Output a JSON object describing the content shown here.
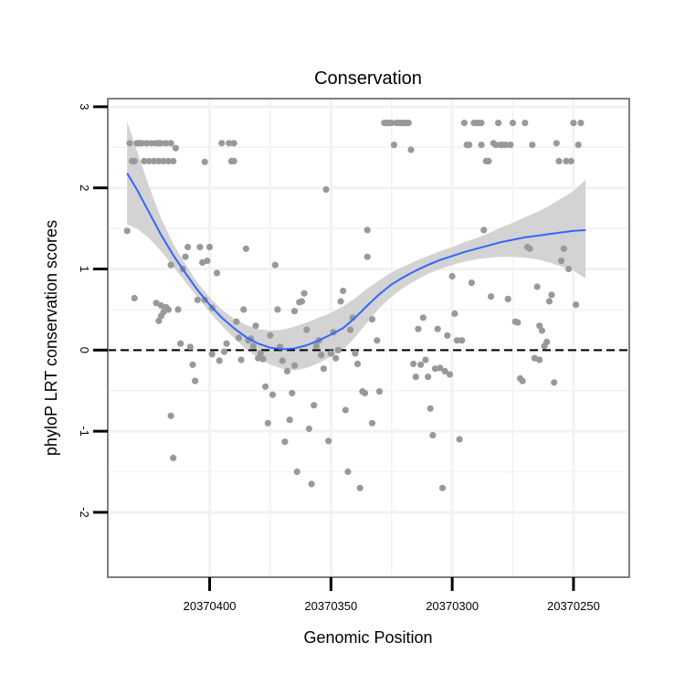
{
  "chart_data": {
    "type": "scatter",
    "title": "Conservation",
    "xlabel": "Genomic Position",
    "ylabel": "phyloP LRT conservation scores",
    "x_reversed": true,
    "xlim": [
      20370442,
      20370227
    ],
    "ylim": [
      -2.8,
      3.1
    ],
    "x_ticks": [
      20370400,
      20370350,
      20370300,
      20370250
    ],
    "x_tick_labels": [
      "20370400",
      "20370350",
      "20370300",
      "20370250"
    ],
    "y_ticks": [
      -2,
      -1,
      0,
      1,
      2,
      3
    ],
    "y_tick_labels": [
      "-2",
      "-1",
      "0",
      "1",
      "2",
      "3"
    ],
    "reference_line": {
      "y": 0,
      "style": "dashed"
    },
    "colors": {
      "points": "#999999",
      "smooth": "#3366ff",
      "band": "#d3d3d3",
      "frame": "#7f7f7f",
      "grid": "#f2f2f2"
    },
    "points": [
      [
        20370434,
        1.47
      ],
      [
        20370433,
        2.55
      ],
      [
        20370432,
        2.33
      ],
      [
        20370431,
        2.33
      ],
      [
        20370430,
        2.55
      ],
      [
        20370429,
        2.55
      ],
      [
        20370428,
        2.55
      ],
      [
        20370427,
        2.33
      ],
      [
        20370426,
        2.55
      ],
      [
        20370425,
        2.33
      ],
      [
        20370424,
        2.55
      ],
      [
        20370423,
        2.33
      ],
      [
        20370422,
        2.55
      ],
      [
        20370421,
        2.33
      ],
      [
        20370420,
        2.55
      ],
      [
        20370419,
        2.33
      ],
      [
        20370418,
        2.55
      ],
      [
        20370417,
        2.33
      ],
      [
        20370416,
        2.55
      ],
      [
        20370415,
        2.33
      ],
      [
        20370431,
        0.64
      ],
      [
        20370422,
        0.58
      ],
      [
        20370420,
        0.42
      ],
      [
        20370419,
        0.47
      ],
      [
        20370418,
        0.53
      ],
      [
        20370417,
        0.5
      ],
      [
        20370421,
        0.36
      ],
      [
        20370416,
        1.05
      ],
      [
        20370414,
        2.49
      ],
      [
        20370416,
        -0.81
      ],
      [
        20370415,
        -1.33
      ],
      [
        20370411,
        1.0
      ],
      [
        20370412,
        0.08
      ],
      [
        20370413,
        0.5
      ],
      [
        20370410,
        1.15
      ],
      [
        20370409,
        1.27
      ],
      [
        20370408,
        0.04
      ],
      [
        20370407,
        -0.18
      ],
      [
        20370406,
        -0.38
      ],
      [
        20370405,
        0.62
      ],
      [
        20370404,
        1.27
      ],
      [
        20370403,
        1.08
      ],
      [
        20370402,
        2.32
      ],
      [
        20370402,
        0.62
      ],
      [
        20370401,
        1.1
      ],
      [
        20370400,
        1.27
      ],
      [
        20370399,
        0.52
      ],
      [
        20370399,
        -0.05
      ],
      [
        20370397,
        0.95
      ],
      [
        20370396,
        -0.13
      ],
      [
        20370395,
        2.55
      ],
      [
        20370394,
        -0.02
      ],
      [
        20370393,
        0.08
      ],
      [
        20370392,
        2.55
      ],
      [
        20370391,
        2.33
      ],
      [
        20370390,
        2.55
      ],
      [
        20370390,
        2.33
      ],
      [
        20370389,
        0.35
      ],
      [
        20370388,
        0.15
      ],
      [
        20370387,
        -0.12
      ],
      [
        20370386,
        0.5
      ],
      [
        20370385,
        1.25
      ],
      [
        20370384,
        0.12
      ],
      [
        20370383,
        0.14
      ],
      [
        20370382,
        0.05
      ],
      [
        20370381,
        0.3
      ],
      [
        20370380,
        -0.1
      ],
      [
        20370379,
        -0.04
      ],
      [
        20370378,
        -0.11
      ],
      [
        20370377,
        -0.45
      ],
      [
        20370376,
        -0.9
      ],
      [
        20370375,
        0.18
      ],
      [
        20370374,
        -0.55
      ],
      [
        20370373,
        1.05
      ],
      [
        20370372,
        0.5
      ],
      [
        20370371,
        0.04
      ],
      [
        20370370,
        -0.13
      ],
      [
        20370369,
        -1.13
      ],
      [
        20370368,
        -0.26
      ],
      [
        20370367,
        -0.86
      ],
      [
        20370366,
        -0.53
      ],
      [
        20370365,
        0.48
      ],
      [
        20370365,
        -0.19
      ],
      [
        20370364,
        -1.5
      ],
      [
        20370363,
        0.59
      ],
      [
        20370362,
        0.6
      ],
      [
        20370361,
        0.7
      ],
      [
        20370360,
        0.25
      ],
      [
        20370359,
        -0.97
      ],
      [
        20370358,
        -1.65
      ],
      [
        20370357,
        -0.68
      ],
      [
        20370356,
        0.05
      ],
      [
        20370355,
        0.12
      ],
      [
        20370354,
        -0.06
      ],
      [
        20370353,
        -0.23
      ],
      [
        20370352,
        1.98
      ],
      [
        20370351,
        -1.12
      ],
      [
        20370350,
        -0.04
      ],
      [
        20370349,
        0.22
      ],
      [
        20370348,
        -0.1
      ],
      [
        20370347,
        0.0
      ],
      [
        20370346,
        0.6
      ],
      [
        20370345,
        0.73
      ],
      [
        20370344,
        -0.74
      ],
      [
        20370343,
        -1.5
      ],
      [
        20370342,
        0.25
      ],
      [
        20370341,
        0.4
      ],
      [
        20370340,
        -0.04
      ],
      [
        20370339,
        -0.17
      ],
      [
        20370338,
        -1.7
      ],
      [
        20370337,
        -0.51
      ],
      [
        20370336,
        -0.53
      ],
      [
        20370335,
        1.48
      ],
      [
        20370335,
        1.15
      ],
      [
        20370333,
        -0.9
      ],
      [
        20370331,
        0.12
      ],
      [
        20370330,
        -0.51
      ],
      [
        20370328,
        2.8
      ],
      [
        20370327,
        2.8
      ],
      [
        20370326,
        2.8
      ],
      [
        20370325,
        2.8
      ],
      [
        20370324,
        2.53
      ],
      [
        20370323,
        2.8
      ],
      [
        20370322,
        2.8
      ],
      [
        20370321,
        2.8
      ],
      [
        20370320,
        2.8
      ],
      [
        20370319,
        2.8
      ],
      [
        20370318,
        2.8
      ],
      [
        20370317,
        2.47
      ],
      [
        20370316,
        -0.17
      ],
      [
        20370315,
        -0.33
      ],
      [
        20370314,
        0.26
      ],
      [
        20370313,
        -0.18
      ],
      [
        20370312,
        0.4
      ],
      [
        20370311,
        -0.12
      ],
      [
        20370310,
        -0.33
      ],
      [
        20370309,
        -0.72
      ],
      [
        20370308,
        -1.05
      ],
      [
        20370307,
        -0.23
      ],
      [
        20370306,
        0.26
      ],
      [
        20370305,
        -0.22
      ],
      [
        20370304,
        -1.7
      ],
      [
        20370303,
        -0.26
      ],
      [
        20370302,
        0.18
      ],
      [
        20370301,
        -0.3
      ],
      [
        20370300,
        0.91
      ],
      [
        20370299,
        0.45
      ],
      [
        20370298,
        0.12
      ],
      [
        20370297,
        -1.1
      ],
      [
        20370296,
        0.12
      ],
      [
        20370295,
        2.8
      ],
      [
        20370294,
        2.53
      ],
      [
        20370293,
        2.53
      ],
      [
        20370292,
        0.83
      ],
      [
        20370291,
        2.8
      ],
      [
        20370290,
        2.8
      ],
      [
        20370289,
        2.8
      ],
      [
        20370288,
        2.8
      ],
      [
        20370288,
        2.53
      ],
      [
        20370287,
        1.48
      ],
      [
        20370286,
        2.33
      ],
      [
        20370285,
        2.33
      ],
      [
        20370284,
        0.66
      ],
      [
        20370283,
        2.55
      ],
      [
        20370282,
        2.53
      ],
      [
        20370281,
        2.8
      ],
      [
        20370280,
        2.53
      ],
      [
        20370279,
        2.53
      ],
      [
        20370278,
        2.53
      ],
      [
        20370277,
        0.63
      ],
      [
        20370276,
        2.53
      ],
      [
        20370275,
        2.8
      ],
      [
        20370274,
        0.35
      ],
      [
        20370273,
        0.34
      ],
      [
        20370272,
        -0.35
      ],
      [
        20370271,
        -0.38
      ],
      [
        20370270,
        2.8
      ],
      [
        20370269,
        1.27
      ],
      [
        20370268,
        1.25
      ],
      [
        20370267,
        2.53
      ],
      [
        20370266,
        -0.1
      ],
      [
        20370265,
        0.78
      ],
      [
        20370264,
        0.3
      ],
      [
        20370263,
        0.24
      ],
      [
        20370262,
        0.05
      ],
      [
        20370261,
        0.1
      ],
      [
        20370260,
        0.6
      ],
      [
        20370259,
        0.68
      ],
      [
        20370258,
        -0.4
      ],
      [
        20370257,
        2.55
      ],
      [
        20370256,
        2.33
      ],
      [
        20370255,
        1.1
      ],
      [
        20370254,
        1.25
      ],
      [
        20370253,
        2.33
      ],
      [
        20370252,
        1.0
      ],
      [
        20370251,
        2.33
      ],
      [
        20370250,
        2.8
      ],
      [
        20370249,
        0.56
      ],
      [
        20370248,
        2.53
      ],
      [
        20370247,
        2.8
      ],
      [
        20370264,
        -0.12
      ],
      [
        20370420,
        0.55
      ],
      [
        20370333,
        0.38
      ],
      [
        20370421,
        2.55
      ]
    ],
    "smooth_fit": {
      "x": [
        20370434,
        20370430,
        20370425,
        20370420,
        20370415,
        20370410,
        20370405,
        20370400,
        20370395,
        20370390,
        20370385,
        20370380,
        20370375,
        20370370,
        20370365,
        20370360,
        20370355,
        20370350,
        20370345,
        20370340,
        20370335,
        20370330,
        20370325,
        20370320,
        20370315,
        20370310,
        20370305,
        20370300,
        20370295,
        20370290,
        20370285,
        20370280,
        20370275,
        20370270,
        20370265,
        20370260,
        20370255,
        20370250,
        20370245
      ],
      "y": [
        2.18,
        1.98,
        1.7,
        1.42,
        1.17,
        0.95,
        0.74,
        0.56,
        0.4,
        0.27,
        0.16,
        0.08,
        0.03,
        0.01,
        0.02,
        0.06,
        0.12,
        0.19,
        0.27,
        0.4,
        0.55,
        0.69,
        0.81,
        0.9,
        0.98,
        1.05,
        1.11,
        1.16,
        1.21,
        1.25,
        1.29,
        1.33,
        1.36,
        1.39,
        1.41,
        1.43,
        1.45,
        1.47,
        1.48
      ],
      "lower": [
        1.55,
        1.5,
        1.38,
        1.22,
        1.03,
        0.84,
        0.65,
        0.47,
        0.3,
        0.15,
        0.01,
        -0.1,
        -0.18,
        -0.23,
        -0.25,
        -0.22,
        -0.16,
        -0.08,
        0.0,
        0.16,
        0.34,
        0.52,
        0.66,
        0.77,
        0.86,
        0.94,
        1.0,
        1.05,
        1.09,
        1.12,
        1.14,
        1.15,
        1.15,
        1.14,
        1.12,
        1.08,
        1.03,
        0.98,
        0.88
      ],
      "upper": [
        2.82,
        2.46,
        2.02,
        1.62,
        1.31,
        1.06,
        0.83,
        0.65,
        0.5,
        0.39,
        0.31,
        0.26,
        0.24,
        0.25,
        0.29,
        0.34,
        0.4,
        0.46,
        0.54,
        0.64,
        0.76,
        0.86,
        0.96,
        1.03,
        1.1,
        1.16,
        1.22,
        1.27,
        1.33,
        1.38,
        1.44,
        1.51,
        1.57,
        1.64,
        1.7,
        1.78,
        1.87,
        1.96,
        2.1
      ]
    }
  }
}
